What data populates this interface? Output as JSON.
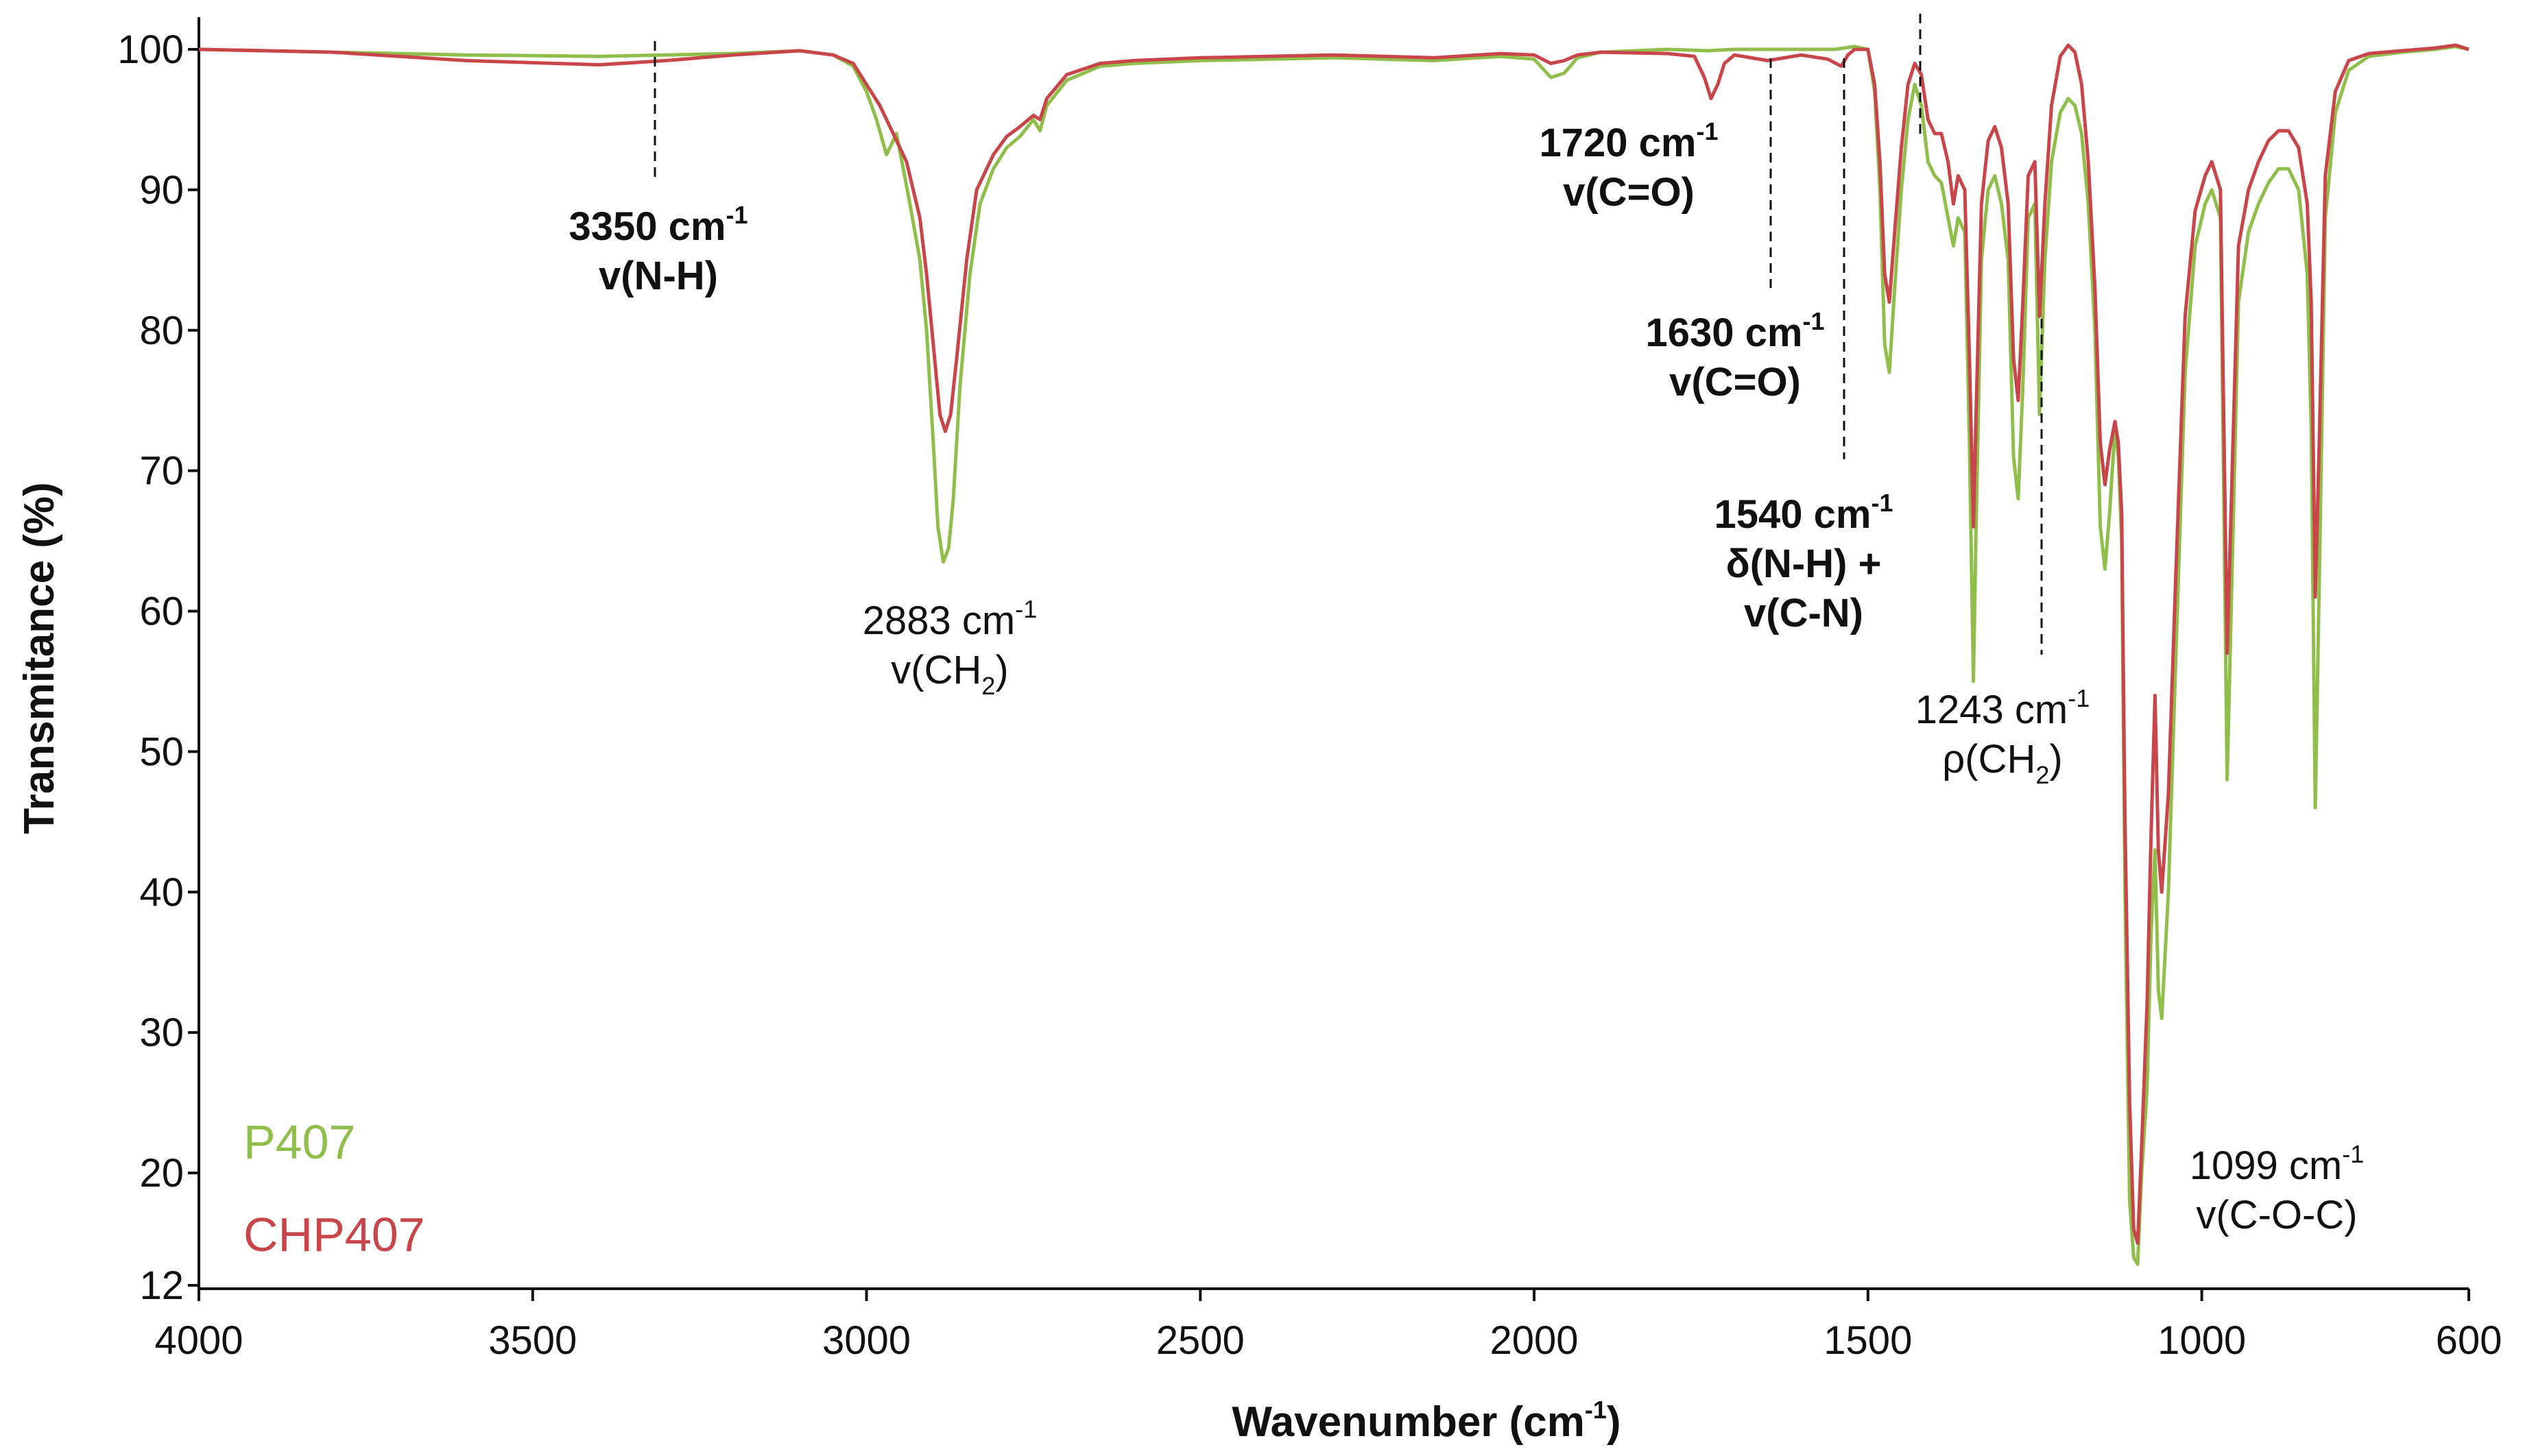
{
  "chart_data": {
    "type": "line",
    "xlabel": "Wavenumber (cm",
    "xlabel_sup": "-1",
    "xlabel_close": ")",
    "ylabel": "Transmitance (%)",
    "xlim": [
      4000,
      600
    ],
    "ylim": [
      12,
      101
    ],
    "x_ticks": [
      4000,
      3500,
      3000,
      2500,
      2000,
      1500,
      1000,
      600
    ],
    "y_ticks": [
      12,
      20,
      30,
      40,
      50,
      60,
      70,
      80,
      90,
      100
    ],
    "series": [
      {
        "name": "P407",
        "color": "#8fbf4a",
        "points": [
          [
            4000,
            100
          ],
          [
            3800,
            99.8
          ],
          [
            3600,
            99.6
          ],
          [
            3400,
            99.5
          ],
          [
            3200,
            99.7
          ],
          [
            3100,
            99.9
          ],
          [
            3050,
            99.6
          ],
          [
            3020,
            98.8
          ],
          [
            3000,
            97
          ],
          [
            2985,
            95
          ],
          [
            2970,
            92.5
          ],
          [
            2955,
            94
          ],
          [
            2945,
            91.5
          ],
          [
            2935,
            89
          ],
          [
            2920,
            85
          ],
          [
            2910,
            80
          ],
          [
            2900,
            72
          ],
          [
            2893,
            66
          ],
          [
            2885,
            63.5
          ],
          [
            2877,
            64.5
          ],
          [
            2870,
            68
          ],
          [
            2860,
            76
          ],
          [
            2845,
            84
          ],
          [
            2830,
            89
          ],
          [
            2810,
            91.5
          ],
          [
            2790,
            93
          ],
          [
            2770,
            93.8
          ],
          [
            2750,
            95
          ],
          [
            2740,
            94.2
          ],
          [
            2730,
            96
          ],
          [
            2700,
            97.8
          ],
          [
            2650,
            98.8
          ],
          [
            2600,
            99
          ],
          [
            2500,
            99.2
          ],
          [
            2300,
            99.4
          ],
          [
            2150,
            99.2
          ],
          [
            2050,
            99.5
          ],
          [
            2000,
            99.3
          ],
          [
            1975,
            98
          ],
          [
            1955,
            98.3
          ],
          [
            1935,
            99.4
          ],
          [
            1900,
            99.8
          ],
          [
            1800,
            100
          ],
          [
            1740,
            99.9
          ],
          [
            1700,
            100
          ],
          [
            1600,
            100
          ],
          [
            1550,
            100
          ],
          [
            1520,
            100.2
          ],
          [
            1500,
            100
          ],
          [
            1490,
            97
          ],
          [
            1482,
            90
          ],
          [
            1475,
            79
          ],
          [
            1468,
            77
          ],
          [
            1460,
            83
          ],
          [
            1450,
            90
          ],
          [
            1440,
            95
          ],
          [
            1430,
            97.5
          ],
          [
            1420,
            96
          ],
          [
            1410,
            92
          ],
          [
            1400,
            91
          ],
          [
            1390,
            90.5
          ],
          [
            1380,
            88
          ],
          [
            1372,
            86
          ],
          [
            1365,
            88
          ],
          [
            1355,
            87
          ],
          [
            1348,
            72
          ],
          [
            1342,
            55
          ],
          [
            1338,
            66
          ],
          [
            1330,
            85
          ],
          [
            1320,
            90
          ],
          [
            1310,
            91
          ],
          [
            1300,
            89
          ],
          [
            1290,
            85
          ],
          [
            1282,
            71
          ],
          [
            1275,
            68
          ],
          [
            1268,
            76
          ],
          [
            1260,
            88
          ],
          [
            1250,
            89
          ],
          [
            1243,
            74
          ],
          [
            1235,
            85
          ],
          [
            1225,
            92
          ],
          [
            1212,
            95.5
          ],
          [
            1200,
            96.5
          ],
          [
            1190,
            96
          ],
          [
            1180,
            94
          ],
          [
            1170,
            89
          ],
          [
            1160,
            80
          ],
          [
            1152,
            66
          ],
          [
            1145,
            63
          ],
          [
            1138,
            67
          ],
          [
            1130,
            73
          ],
          [
            1125,
            71
          ],
          [
            1120,
            65
          ],
          [
            1115,
            40
          ],
          [
            1108,
            18
          ],
          [
            1102,
            14
          ],
          [
            1096,
            13.5
          ],
          [
            1090,
            20
          ],
          [
            1082,
            26
          ],
          [
            1076,
            37
          ],
          [
            1070,
            43
          ],
          [
            1065,
            33
          ],
          [
            1060,
            31
          ],
          [
            1050,
            40
          ],
          [
            1040,
            55
          ],
          [
            1025,
            77
          ],
          [
            1010,
            86
          ],
          [
            995,
            89
          ],
          [
            985,
            90
          ],
          [
            972,
            88
          ],
          [
            962,
            48
          ],
          [
            955,
            62
          ],
          [
            945,
            82
          ],
          [
            930,
            87
          ],
          [
            915,
            89
          ],
          [
            900,
            90.5
          ],
          [
            885,
            91.5
          ],
          [
            870,
            91.5
          ],
          [
            855,
            90
          ],
          [
            842,
            84
          ],
          [
            836,
            73
          ],
          [
            830,
            46
          ],
          [
            824,
            62
          ],
          [
            815,
            88
          ],
          [
            800,
            95.5
          ],
          [
            780,
            98.5
          ],
          [
            750,
            99.5
          ],
          [
            700,
            99.8
          ],
          [
            650,
            100
          ],
          [
            620,
            100.2
          ],
          [
            600,
            100
          ]
        ]
      },
      {
        "name": "CHP407",
        "color": "#c8464a",
        "points": [
          [
            4000,
            100
          ],
          [
            3800,
            99.8
          ],
          [
            3600,
            99.2
          ],
          [
            3400,
            98.9
          ],
          [
            3300,
            99.2
          ],
          [
            3200,
            99.6
          ],
          [
            3100,
            99.9
          ],
          [
            3050,
            99.6
          ],
          [
            3020,
            99
          ],
          [
            3000,
            97.5
          ],
          [
            2980,
            96
          ],
          [
            2960,
            94
          ],
          [
            2940,
            92
          ],
          [
            2920,
            88
          ],
          [
            2910,
            84
          ],
          [
            2900,
            79
          ],
          [
            2890,
            74
          ],
          [
            2882,
            72.8
          ],
          [
            2874,
            74
          ],
          [
            2865,
            78
          ],
          [
            2850,
            85
          ],
          [
            2835,
            90
          ],
          [
            2810,
            92.5
          ],
          [
            2790,
            93.8
          ],
          [
            2770,
            94.5
          ],
          [
            2750,
            95.3
          ],
          [
            2740,
            95
          ],
          [
            2730,
            96.5
          ],
          [
            2700,
            98.2
          ],
          [
            2650,
            99
          ],
          [
            2600,
            99.2
          ],
          [
            2500,
            99.4
          ],
          [
            2300,
            99.6
          ],
          [
            2150,
            99.4
          ],
          [
            2050,
            99.7
          ],
          [
            2000,
            99.6
          ],
          [
            1975,
            99
          ],
          [
            1955,
            99.2
          ],
          [
            1935,
            99.6
          ],
          [
            1900,
            99.8
          ],
          [
            1800,
            99.7
          ],
          [
            1760,
            99.5
          ],
          [
            1745,
            98
          ],
          [
            1735,
            96.5
          ],
          [
            1725,
            97.5
          ],
          [
            1715,
            99
          ],
          [
            1700,
            99.6
          ],
          [
            1650,
            99.2
          ],
          [
            1600,
            99.6
          ],
          [
            1560,
            99.3
          ],
          [
            1540,
            98.8
          ],
          [
            1530,
            99.6
          ],
          [
            1520,
            100
          ],
          [
            1500,
            100
          ],
          [
            1490,
            97.5
          ],
          [
            1482,
            92
          ],
          [
            1475,
            84
          ],
          [
            1468,
            82
          ],
          [
            1460,
            87
          ],
          [
            1450,
            93
          ],
          [
            1440,
            97.5
          ],
          [
            1430,
            99
          ],
          [
            1420,
            98.2
          ],
          [
            1410,
            95
          ],
          [
            1400,
            94
          ],
          [
            1390,
            94
          ],
          [
            1380,
            92
          ],
          [
            1372,
            89
          ],
          [
            1365,
            91
          ],
          [
            1355,
            90
          ],
          [
            1348,
            78
          ],
          [
            1342,
            66
          ],
          [
            1338,
            74
          ],
          [
            1330,
            89
          ],
          [
            1320,
            93.5
          ],
          [
            1310,
            94.5
          ],
          [
            1300,
            93
          ],
          [
            1290,
            89
          ],
          [
            1282,
            78
          ],
          [
            1275,
            75
          ],
          [
            1268,
            82
          ],
          [
            1260,
            91
          ],
          [
            1250,
            92
          ],
          [
            1243,
            81
          ],
          [
            1235,
            89
          ],
          [
            1225,
            96
          ],
          [
            1212,
            99.5
          ],
          [
            1200,
            100.3
          ],
          [
            1190,
            99.8
          ],
          [
            1180,
            97.5
          ],
          [
            1170,
            92
          ],
          [
            1160,
            83
          ],
          [
            1152,
            72
          ],
          [
            1145,
            69
          ],
          [
            1138,
            71.5
          ],
          [
            1130,
            73.5
          ],
          [
            1125,
            72
          ],
          [
            1120,
            67
          ],
          [
            1115,
            45
          ],
          [
            1108,
            25
          ],
          [
            1102,
            16
          ],
          [
            1096,
            15
          ],
          [
            1090,
            22
          ],
          [
            1082,
            32
          ],
          [
            1076,
            44
          ],
          [
            1070,
            54
          ],
          [
            1065,
            43
          ],
          [
            1060,
            40
          ],
          [
            1050,
            47
          ],
          [
            1040,
            61
          ],
          [
            1025,
            81
          ],
          [
            1010,
            88.5
          ],
          [
            995,
            91
          ],
          [
            985,
            92
          ],
          [
            972,
            90
          ],
          [
            962,
            57
          ],
          [
            955,
            69
          ],
          [
            945,
            86
          ],
          [
            930,
            90
          ],
          [
            915,
            92
          ],
          [
            900,
            93.5
          ],
          [
            885,
            94.2
          ],
          [
            870,
            94.2
          ],
          [
            855,
            93
          ],
          [
            842,
            89
          ],
          [
            836,
            82
          ],
          [
            830,
            61
          ],
          [
            824,
            72
          ],
          [
            815,
            91
          ],
          [
            800,
            97
          ],
          [
            780,
            99.2
          ],
          [
            750,
            99.7
          ],
          [
            700,
            99.9
          ],
          [
            650,
            100.1
          ],
          [
            620,
            100.3
          ],
          [
            600,
            100
          ]
        ]
      }
    ],
    "annotations": [
      {
        "wavenumber": 3350,
        "label": "3350 cm",
        "sup": "-1",
        "sub_label": "v(N-H)",
        "bold": true
      },
      {
        "wavenumber": 2883,
        "label": "2883 cm",
        "sup": "-1",
        "sub_label": "v(CH",
        "sub_sub": "2",
        "sub_close": ")",
        "bold": false
      },
      {
        "wavenumber": 1720,
        "label": "1720 cm",
        "sup": "-1",
        "sub_label": "v(C=O)",
        "bold": true
      },
      {
        "wavenumber": 1630,
        "label": "1630 cm",
        "sup": "-1",
        "sub_label": "v(C=O)",
        "bold": true
      },
      {
        "wavenumber": 1540,
        "label": "1540 cm",
        "sup": "-1",
        "sub_label": "δ(N-H) +",
        "sub_label2": "v(C-N)",
        "bold": true
      },
      {
        "wavenumber": 1243,
        "label": "1243 cm",
        "sup": "-1",
        "sub_label": "ρ(CH",
        "sub_sub": "2",
        "sub_close": ")",
        "bold": false
      },
      {
        "wavenumber": 1099,
        "label": "1099 cm",
        "sup": "-1",
        "sub_label": "v(C-O-C)",
        "bold": false
      }
    ],
    "legend": {
      "placement": "bottom-left",
      "entries": [
        {
          "label": "P407",
          "color": "#8fbf4a"
        },
        {
          "label": "CHP407",
          "color": "#c8464a"
        }
      ]
    }
  }
}
